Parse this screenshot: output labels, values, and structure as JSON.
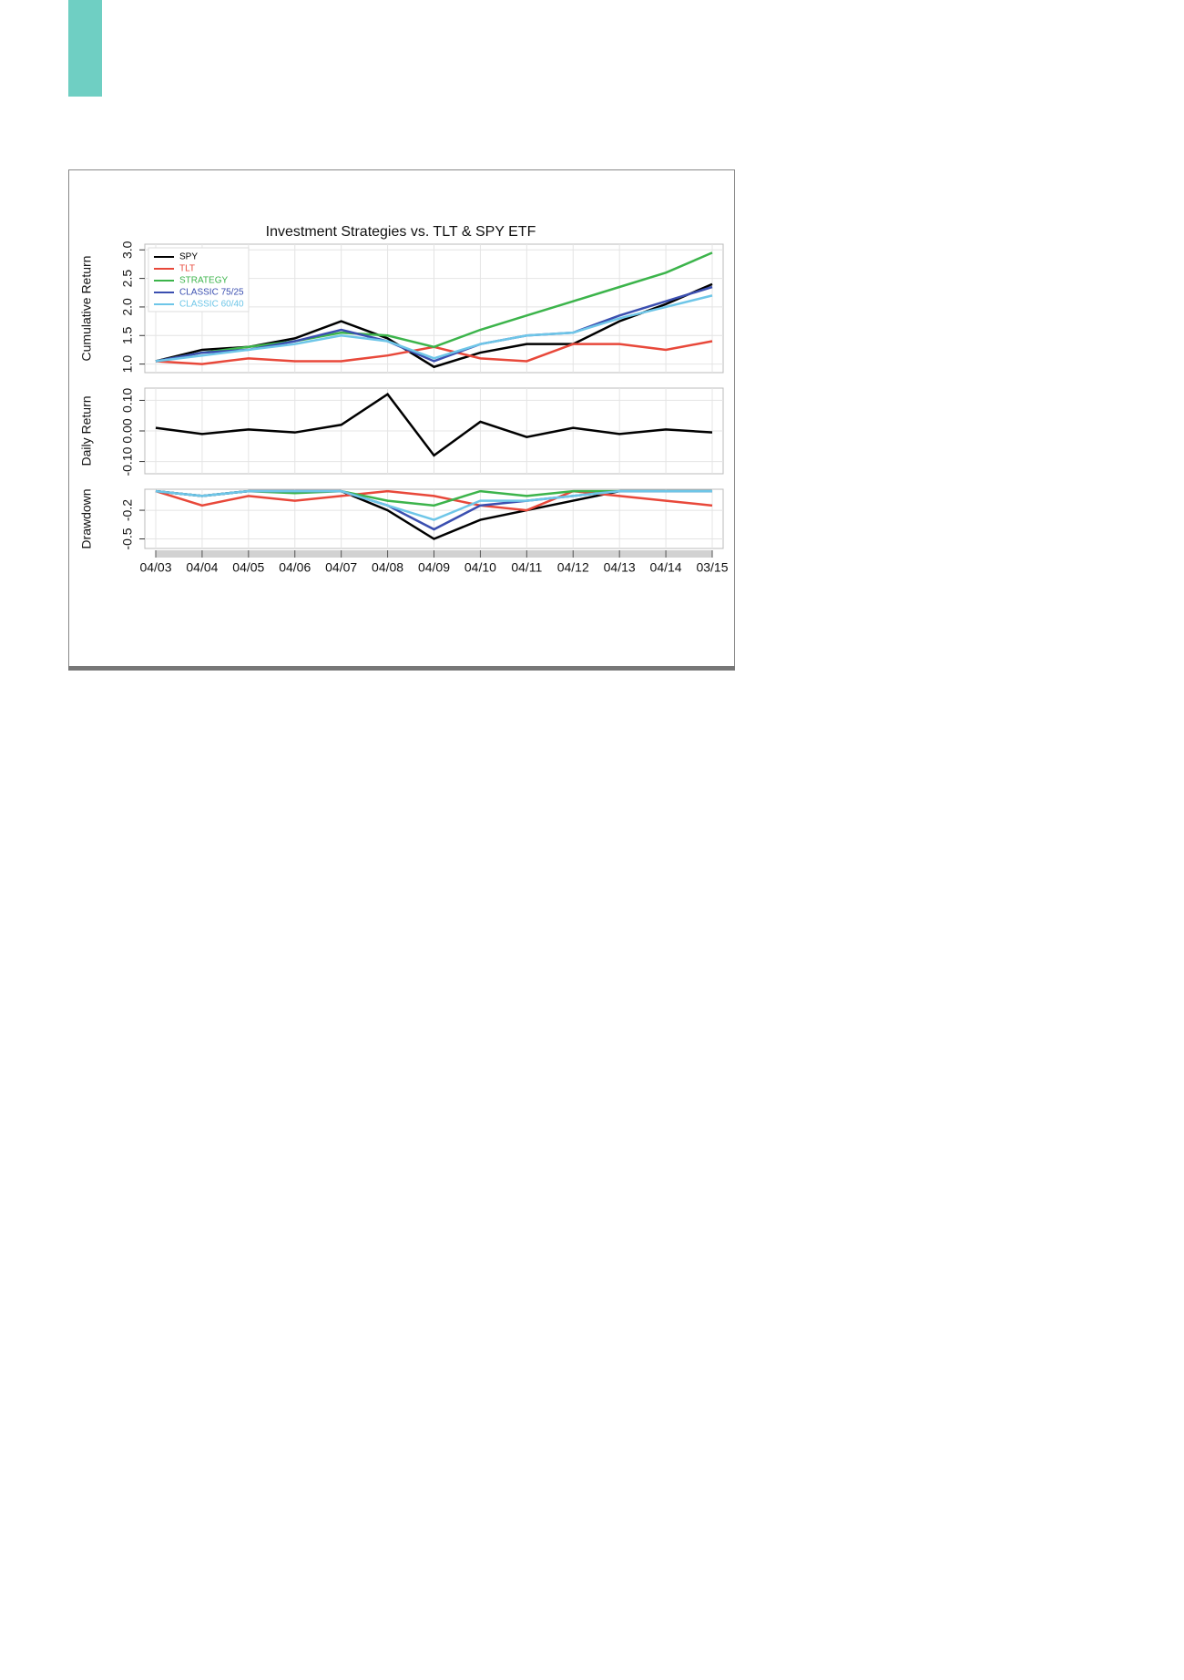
{
  "chart_data": [
    {
      "type": "line",
      "title": "Investment Strategies vs. TLT & SPY ETF",
      "y_label": "Cumulative Return",
      "ylim": [
        0.85,
        3.1
      ],
      "yticks": [
        {
          "value": 1,
          "label": "1.0"
        },
        1.5,
        {
          "value": 2,
          "label": "2.0"
        },
        2.5,
        {
          "value": 3,
          "label": "3.0"
        }
      ],
      "legend": "top-left",
      "series": [
        {
          "name": "SPY",
          "color": "#000000",
          "values": [
            1.05,
            1.25,
            1.3,
            1.45,
            1.75,
            1.45,
            0.95,
            1.2,
            1.35,
            1.35,
            1.75,
            2.05,
            2.4
          ]
        },
        {
          "name": "TLT",
          "color": "#e8483a",
          "values": [
            1.05,
            1.0,
            1.1,
            1.05,
            1.05,
            1.15,
            1.3,
            1.1,
            1.05,
            1.35,
            1.35,
            1.25,
            1.4
          ]
        },
        {
          "name": "STRATEGY",
          "color": "#3cb44b",
          "values": [
            1.05,
            1.2,
            1.3,
            1.4,
            1.55,
            1.5,
            1.3,
            1.6,
            1.85,
            2.1,
            2.35,
            2.6,
            2.95
          ]
        },
        {
          "name": "CLASSIC 75/25",
          "color": "#3b4fb0",
          "values": [
            1.05,
            1.2,
            1.25,
            1.4,
            1.6,
            1.4,
            1.05,
            1.35,
            1.5,
            1.55,
            1.85,
            2.1,
            2.35
          ]
        },
        {
          "name": "CLASSIC 60/40",
          "color": "#6ec6e8",
          "values": [
            1.05,
            1.15,
            1.25,
            1.35,
            1.5,
            1.4,
            1.1,
            1.35,
            1.5,
            1.55,
            1.8,
            2.0,
            2.2
          ]
        }
      ]
    },
    {
      "type": "line",
      "y_label": "Daily Return",
      "ylim": [
        -0.14,
        0.14
      ],
      "yticks": [
        {
          "value": -0.1,
          "label": "-0.10"
        },
        {
          "value": 0,
          "label": "0.00"
        },
        {
          "value": 0.1,
          "label": "0.10"
        }
      ],
      "series": [
        {
          "color": "#000000",
          "values": [
            0.01,
            -0.01,
            0.005,
            -0.005,
            0.02,
            0.12,
            -0.08,
            0.03,
            -0.02,
            0.01,
            -0.01,
            0.005,
            -0.005
          ]
        }
      ]
    },
    {
      "type": "line",
      "y_label": "Drawdown",
      "ylim": [
        -0.6,
        0.02
      ],
      "yticks": [
        -0.5,
        -0.2
      ],
      "categories": [
        "04/03",
        "04/04",
        "04/05",
        "04/06",
        "04/07",
        "04/08",
        "04/09",
        "04/10",
        "04/11",
        "04/12",
        "04/13",
        "04/14",
        "03/15"
      ],
      "series": [
        {
          "color": "#000000",
          "values": [
            0,
            -0.05,
            0,
            0,
            0,
            -0.2,
            -0.5,
            -0.3,
            -0.2,
            -0.1,
            0,
            0,
            0
          ]
        },
        {
          "color": "#e8483a",
          "values": [
            0,
            -0.15,
            -0.05,
            -0.1,
            -0.05,
            0,
            -0.05,
            -0.15,
            -0.2,
            0,
            -0.05,
            -0.1,
            -0.15
          ]
        },
        {
          "color": "#3cb44b",
          "values": [
            0,
            -0.05,
            0,
            -0.02,
            0,
            -0.1,
            -0.15,
            0,
            -0.05,
            0,
            0,
            0,
            0
          ]
        },
        {
          "color": "#3b4fb0",
          "values": [
            0,
            -0.05,
            0,
            0,
            0,
            -0.15,
            -0.4,
            -0.15,
            -0.1,
            -0.05,
            0,
            0,
            0
          ]
        },
        {
          "color": "#6ec6e8",
          "values": [
            0,
            -0.05,
            0,
            0,
            0,
            -0.15,
            -0.3,
            -0.1,
            -0.1,
            -0.05,
            0,
            0,
            0
          ]
        }
      ]
    }
  ]
}
